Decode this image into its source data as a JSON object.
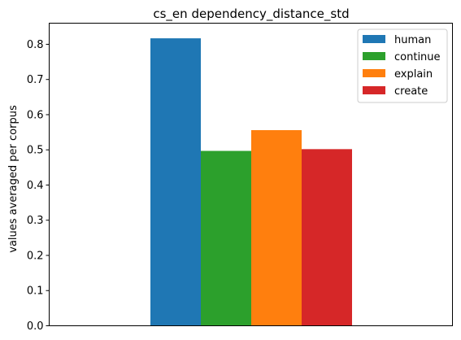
{
  "chart_data": {
    "type": "bar",
    "title": "cs_en dependency_distance_std",
    "xlabel": "",
    "ylabel": "values averaged per corpus",
    "ylim": [
      0,
      0.86
    ],
    "yticks": [
      "0.0",
      "0.1",
      "0.2",
      "0.3",
      "0.4",
      "0.5",
      "0.6",
      "0.7",
      "0.8"
    ],
    "grid": false,
    "legend_position": "top-right",
    "series": [
      {
        "name": "human",
        "value": 0.817,
        "color": "#1f77b4"
      },
      {
        "name": "continue",
        "value": 0.497,
        "color": "#2ca02c"
      },
      {
        "name": "explain",
        "value": 0.556,
        "color": "#ff7f0e"
      },
      {
        "name": "create",
        "value": 0.502,
        "color": "#d62728"
      }
    ]
  }
}
